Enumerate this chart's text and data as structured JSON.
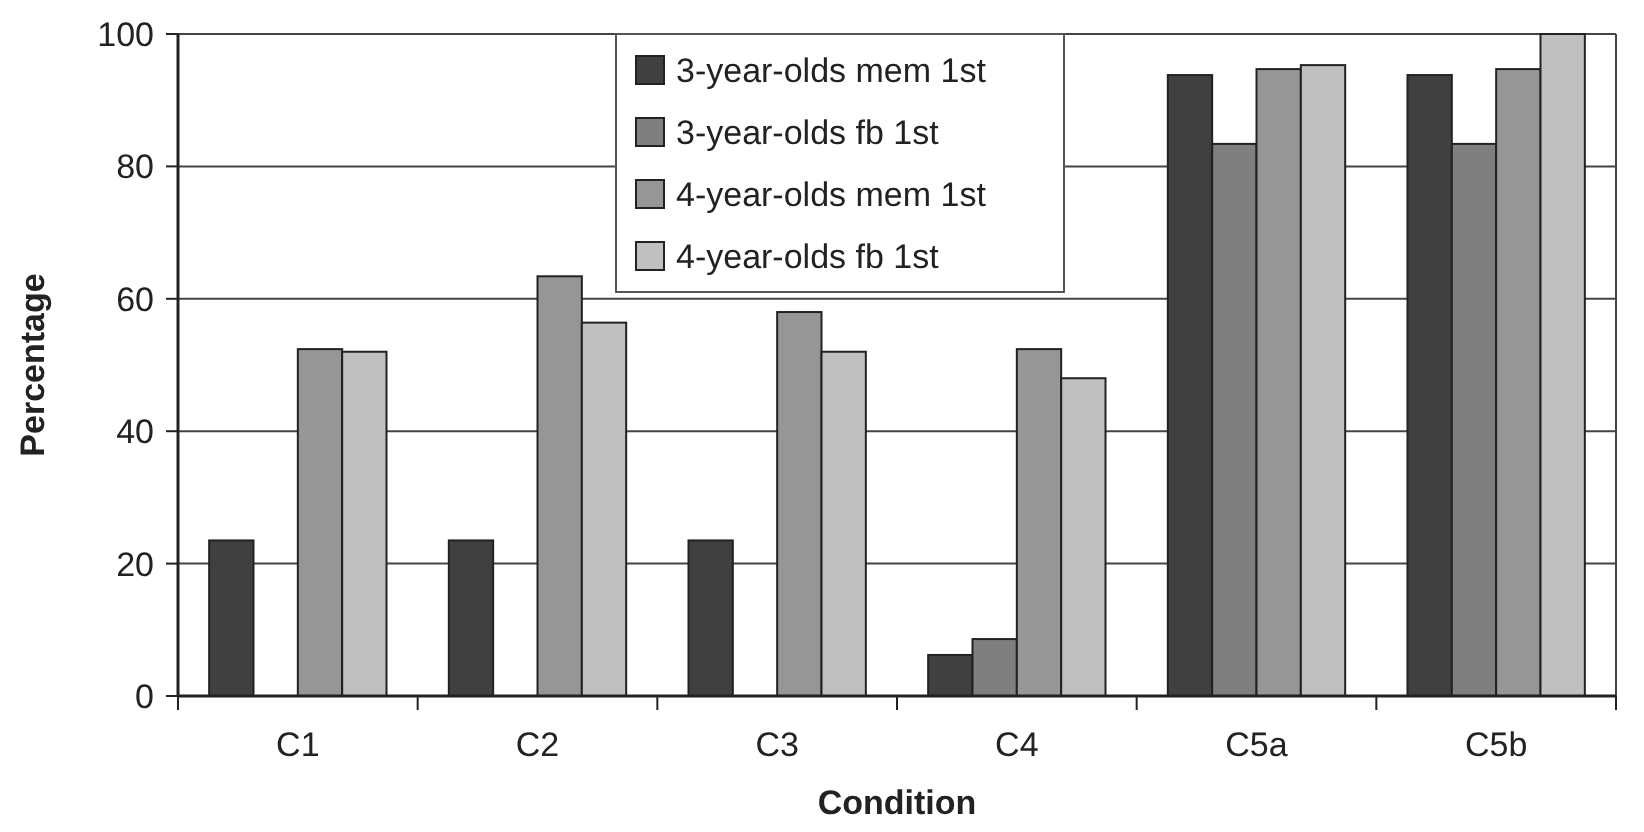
{
  "chart_data": {
    "type": "bar",
    "xlabel": "Condition",
    "ylabel": "Percentage",
    "categories": [
      "C1",
      "C2",
      "C3",
      "C4",
      "C5a",
      "C5b"
    ],
    "series": [
      {
        "name": "3-year-olds mem 1st",
        "color": "#404040",
        "values": [
          23.5,
          23.5,
          23.5,
          6.2,
          93.8,
          93.8
        ]
      },
      {
        "name": "3-year-olds fb 1st",
        "color": "#7f7f7f",
        "values": [
          0,
          0,
          0,
          8.6,
          83.4,
          83.4
        ]
      },
      {
        "name": "4-year-olds mem 1st",
        "color": "#969696",
        "values": [
          52.4,
          63.4,
          58,
          52.4,
          94.7,
          94.7
        ]
      },
      {
        "name": "4-year-olds fb 1st",
        "color": "#c0c0c0",
        "values": [
          52,
          56.4,
          52,
          48,
          95.3,
          100
        ]
      }
    ],
    "ylim": [
      0,
      100
    ],
    "yticks": [
      0,
      20,
      40,
      60,
      80,
      100
    ],
    "grid": "y",
    "legend": "top"
  }
}
